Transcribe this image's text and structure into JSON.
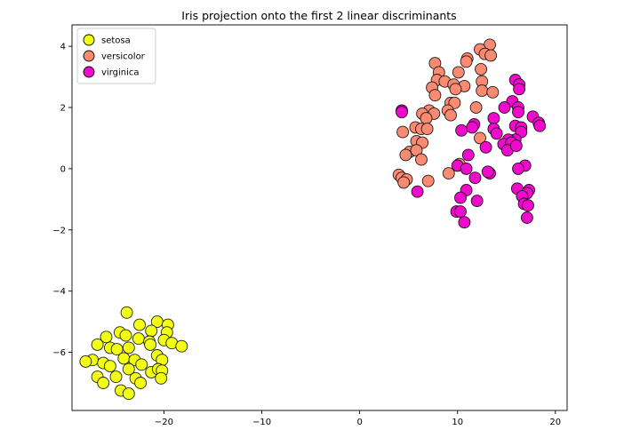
{
  "chart_data": {
    "type": "scatter",
    "title": "Iris projection onto the first 2 linear discriminants",
    "xlabel": "",
    "ylabel": "",
    "xlim": [
      -29.4,
      21.2
    ],
    "ylim": [
      -7.9,
      4.7
    ],
    "xticks": [
      -20,
      -10,
      0,
      10,
      20
    ],
    "yticks": [
      -6,
      -4,
      -2,
      0,
      2,
      4
    ],
    "xtick_labels": [
      "−20",
      "−10",
      "0",
      "10",
      "20"
    ],
    "ytick_labels": [
      "−6",
      "−4",
      "−2",
      "0",
      "2",
      "4"
    ],
    "grid": false,
    "legend_position": "top-left",
    "series": [
      {
        "name": "setosa",
        "color": "#f2ff12",
        "points": [
          [
            -23.8,
            -4.7
          ],
          [
            -22.5,
            -5.1
          ],
          [
            -20.7,
            -5.0
          ],
          [
            -19.6,
            -5.1
          ],
          [
            -24.5,
            -5.35
          ],
          [
            -21.3,
            -5.3
          ],
          [
            -19.7,
            -5.35
          ],
          [
            -25.9,
            -5.5
          ],
          [
            -23.9,
            -5.45
          ],
          [
            -22.6,
            -5.55
          ],
          [
            -21.5,
            -5.65
          ],
          [
            -20.0,
            -5.6
          ],
          [
            -21.4,
            -5.75
          ],
          [
            -19.2,
            -5.7
          ],
          [
            -18.2,
            -5.8
          ],
          [
            -26.8,
            -5.75
          ],
          [
            -25.5,
            -5.85
          ],
          [
            -24.8,
            -5.9
          ],
          [
            -23.6,
            -5.85
          ],
          [
            -27.3,
            -6.25
          ],
          [
            -26.2,
            -6.35
          ],
          [
            -24.1,
            -6.2
          ],
          [
            -23.0,
            -6.25
          ],
          [
            -22.3,
            -6.4
          ],
          [
            -20.7,
            -6.1
          ],
          [
            -20.2,
            -6.25
          ],
          [
            -28.0,
            -6.3
          ],
          [
            -25.5,
            -6.45
          ],
          [
            -23.6,
            -6.55
          ],
          [
            -21.3,
            -6.65
          ],
          [
            -20.6,
            -6.55
          ],
          [
            -20.2,
            -6.6
          ],
          [
            -26.8,
            -6.8
          ],
          [
            -24.9,
            -6.8
          ],
          [
            -22.9,
            -6.85
          ],
          [
            -20.3,
            -6.85
          ],
          [
            -26.2,
            -7.0
          ],
          [
            -22.4,
            -7.0
          ],
          [
            -24.4,
            -7.25
          ],
          [
            -23.6,
            -7.35
          ]
        ]
      },
      {
        "name": "versicolor",
        "color": "#fa8a72",
        "points": [
          [
            13.3,
            4.05
          ],
          [
            12.3,
            3.9
          ],
          [
            11.0,
            3.6
          ],
          [
            10.9,
            3.5
          ],
          [
            12.8,
            3.75
          ],
          [
            13.4,
            3.7
          ],
          [
            7.7,
            3.45
          ],
          [
            8.1,
            3.15
          ],
          [
            10.1,
            3.15
          ],
          [
            12.4,
            3.25
          ],
          [
            7.9,
            2.9
          ],
          [
            8.7,
            2.85
          ],
          [
            9.6,
            2.75
          ],
          [
            10.7,
            2.7
          ],
          [
            12.5,
            2.85
          ],
          [
            12.5,
            2.55
          ],
          [
            13.6,
            2.5
          ],
          [
            7.4,
            2.65
          ],
          [
            9.8,
            2.6
          ],
          [
            7.7,
            2.4
          ],
          [
            9.3,
            2.15
          ],
          [
            9.7,
            2.15
          ],
          [
            11.9,
            2.0
          ],
          [
            7.1,
            1.9
          ],
          [
            9.0,
            1.9
          ],
          [
            6.4,
            1.8
          ],
          [
            7.6,
            1.8
          ],
          [
            9.3,
            1.75
          ],
          [
            6.8,
            1.65
          ],
          [
            5.7,
            1.35
          ],
          [
            6.3,
            1.3
          ],
          [
            6.9,
            1.3
          ],
          [
            4.4,
            1.2
          ],
          [
            5.8,
            0.9
          ],
          [
            6.4,
            0.85
          ],
          [
            5.1,
            0.55
          ],
          [
            5.8,
            0.6
          ],
          [
            4.7,
            0.45
          ],
          [
            6.3,
            0.3
          ],
          [
            10.2,
            0.15
          ],
          [
            9.1,
            -0.15
          ],
          [
            4.0,
            -0.2
          ],
          [
            4.3,
            -0.3
          ],
          [
            4.8,
            -0.35
          ],
          [
            4.5,
            -0.45
          ],
          [
            7.0,
            -0.4
          ],
          [
            12.3,
            1.0
          ]
        ]
      },
      {
        "name": "virginica",
        "color": "#ef0bcb",
        "points": [
          [
            15.9,
            2.9
          ],
          [
            16.3,
            2.75
          ],
          [
            16.3,
            2.6
          ],
          [
            15.6,
            2.2
          ],
          [
            14.8,
            2.0
          ],
          [
            16.2,
            2.0
          ],
          [
            16.2,
            1.85
          ],
          [
            17.7,
            1.7
          ],
          [
            18.3,
            1.5
          ],
          [
            18.4,
            1.4
          ],
          [
            13.7,
            1.65
          ],
          [
            11.7,
            1.45
          ],
          [
            11.5,
            1.35
          ],
          [
            15.9,
            1.4
          ],
          [
            16.5,
            1.35
          ],
          [
            13.7,
            1.3
          ],
          [
            10.4,
            1.25
          ],
          [
            14.0,
            1.15
          ],
          [
            16.5,
            1.2
          ],
          [
            15.9,
            0.95
          ],
          [
            15.2,
            0.95
          ],
          [
            14.7,
            0.8
          ],
          [
            15.5,
            0.85
          ],
          [
            15.1,
            0.6
          ],
          [
            16.0,
            0.75
          ],
          [
            12.9,
            0.7
          ],
          [
            11.1,
            0.45
          ],
          [
            10.0,
            0.1
          ],
          [
            16.9,
            0.1
          ],
          [
            16.2,
            0.0
          ],
          [
            13.3,
            -0.15
          ],
          [
            13.1,
            -0.1
          ],
          [
            11.8,
            -0.3
          ],
          [
            10.9,
            0.0
          ],
          [
            16.1,
            -0.65
          ],
          [
            17.3,
            -0.7
          ],
          [
            17.1,
            -0.8
          ],
          [
            10.9,
            -0.7
          ],
          [
            16.6,
            -0.9
          ],
          [
            10.3,
            -0.95
          ],
          [
            12.0,
            -1.05
          ],
          [
            16.8,
            -1.15
          ],
          [
            17.2,
            -1.2
          ],
          [
            9.9,
            -1.4
          ],
          [
            10.3,
            -1.4
          ],
          [
            17.1,
            -1.6
          ],
          [
            10.7,
            -1.75
          ],
          [
            5.9,
            -0.75
          ],
          [
            4.3,
            1.9
          ],
          [
            4.3,
            1.85
          ]
        ]
      }
    ]
  }
}
